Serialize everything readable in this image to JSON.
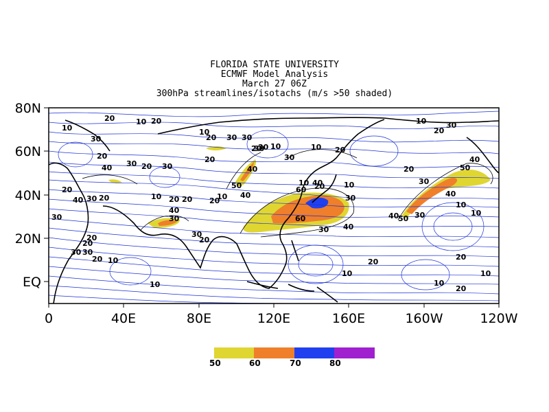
{
  "title": {
    "line1": "FLORIDA STATE UNIVERSITY",
    "line2": "ECMWF Model Analysis",
    "line3": "March 27 06Z",
    "line4": "300hPa streamlines/isotachs (m/s >50 shaded)"
  },
  "axes": {
    "lat_labels": [
      "80N",
      "60N",
      "40N",
      "20N",
      "EQ"
    ],
    "lon_labels": [
      "0",
      "40E",
      "80E",
      "120E",
      "160E",
      "160W",
      "120W"
    ]
  },
  "legend": {
    "items": [
      {
        "label": "50",
        "color": "#e0d632"
      },
      {
        "label": "60",
        "color": "#ef7f2a"
      },
      {
        "label": "70",
        "color": "#2040f0"
      },
      {
        "label": "80",
        "color": "#a020d0"
      }
    ]
  },
  "colors": {
    "streamline": "#1a2fd6",
    "isotach": "#000000",
    "coast": "#000000"
  },
  "isotach_labels": [
    "10",
    "20",
    "10",
    "20",
    "10",
    "20",
    "30",
    "20",
    "30",
    "20",
    "30",
    "10",
    "40",
    "30",
    "20",
    "30",
    "20",
    "30",
    "20",
    "40",
    "30",
    "20",
    "20",
    "40",
    "20",
    "10",
    "30",
    "20",
    "10",
    "30",
    "20",
    "40",
    "30",
    "40",
    "50",
    "10",
    "40",
    "60",
    "20",
    "10",
    "30",
    "30",
    "40",
    "20",
    "10",
    "30",
    "60",
    "50",
    "40",
    "30",
    "20",
    "40",
    "10",
    "10",
    "20",
    "30",
    "40",
    "30",
    "20",
    "10",
    "10",
    "20",
    "10",
    "50",
    "30",
    "20",
    "20",
    "30",
    "10",
    "10",
    "20",
    "10",
    "20",
    "30"
  ]
}
